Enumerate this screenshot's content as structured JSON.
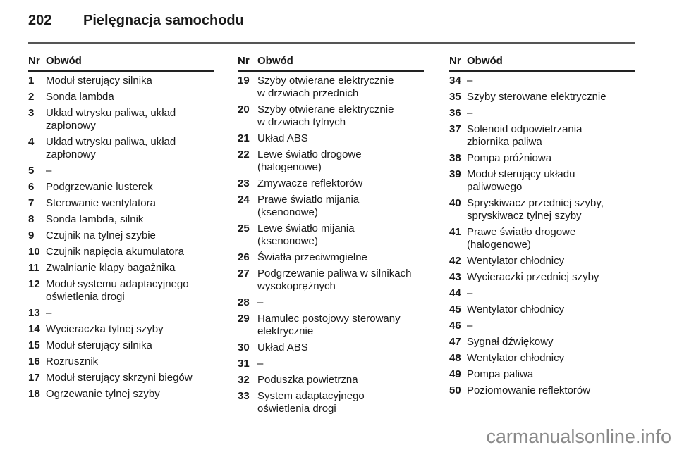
{
  "page": {
    "number": "202",
    "title": "Pielęgnacja samochodu"
  },
  "table_header": {
    "nr": "Nr",
    "circuit": "Obwód"
  },
  "columns": [
    [
      {
        "nr": "1",
        "text": "Moduł sterujący silnika"
      },
      {
        "nr": "2",
        "text": "Sonda lambda"
      },
      {
        "nr": "3",
        "text": "Układ wtrysku paliwa, układ\nzapłonowy"
      },
      {
        "nr": "4",
        "text": "Układ wtrysku paliwa, układ\nzapłonowy"
      },
      {
        "nr": "5",
        "text": "–"
      },
      {
        "nr": "6",
        "text": "Podgrzewanie lusterek"
      },
      {
        "nr": "7",
        "text": "Sterowanie wentylatora"
      },
      {
        "nr": "8",
        "text": "Sonda lambda, silnik"
      },
      {
        "nr": "9",
        "text": "Czujnik na tylnej szybie"
      },
      {
        "nr": "10",
        "text": "Czujnik napięcia akumulatora"
      },
      {
        "nr": "11",
        "text": "Zwalnianie klapy bagażnika"
      },
      {
        "nr": "12",
        "text": "Moduł systemu adaptacyjnego\noświetlenia drogi"
      },
      {
        "nr": "13",
        "text": "–"
      },
      {
        "nr": "14",
        "text": "Wycieraczka tylnej szyby"
      },
      {
        "nr": "15",
        "text": "Moduł sterujący silnika"
      },
      {
        "nr": "16",
        "text": "Rozrusznik"
      },
      {
        "nr": "17",
        "text": "Moduł sterujący skrzyni biegów"
      },
      {
        "nr": "18",
        "text": "Ogrzewanie tylnej szyby"
      }
    ],
    [
      {
        "nr": "19",
        "text": "Szyby otwierane elektrycznie\nw drzwiach przednich"
      },
      {
        "nr": "20",
        "text": "Szyby otwierane elektrycznie\nw drzwiach tylnych"
      },
      {
        "nr": "21",
        "text": "Układ ABS"
      },
      {
        "nr": "22",
        "text": "Lewe światło drogowe\n(halogenowe)"
      },
      {
        "nr": "23",
        "text": "Zmywacze reflektorów"
      },
      {
        "nr": "24",
        "text": "Prawe światło mijania\n(ksenonowe)"
      },
      {
        "nr": "25",
        "text": "Lewe światło mijania\n(ksenonowe)"
      },
      {
        "nr": "26",
        "text": "Światła przeciwmgielne"
      },
      {
        "nr": "27",
        "text": "Podgrzewanie paliwa w silnikach\nwysokoprężnych"
      },
      {
        "nr": "28",
        "text": "–"
      },
      {
        "nr": "29",
        "text": "Hamulec postojowy sterowany\nelektrycznie"
      },
      {
        "nr": "30",
        "text": "Układ ABS"
      },
      {
        "nr": "31",
        "text": "–"
      },
      {
        "nr": "32",
        "text": "Poduszka powietrzna"
      },
      {
        "nr": "33",
        "text": "System adaptacyjnego\noświetlenia drogi"
      }
    ],
    [
      {
        "nr": "34",
        "text": "–"
      },
      {
        "nr": "35",
        "text": "Szyby sterowane elektrycznie"
      },
      {
        "nr": "36",
        "text": "–"
      },
      {
        "nr": "37",
        "text": "Solenoid odpowietrzania\nzbiornika paliwa"
      },
      {
        "nr": "38",
        "text": "Pompa próżniowa"
      },
      {
        "nr": "39",
        "text": "Moduł sterujący układu\npaliwowego"
      },
      {
        "nr": "40",
        "text": "Spryskiwacz przedniej szyby,\nspryskiwacz tylnej szyby"
      },
      {
        "nr": "41",
        "text": "Prawe światło drogowe\n(halogenowe)"
      },
      {
        "nr": "42",
        "text": "Wentylator chłodnicy"
      },
      {
        "nr": "43",
        "text": "Wycieraczki przedniej szyby"
      },
      {
        "nr": "44",
        "text": "–"
      },
      {
        "nr": "45",
        "text": "Wentylator chłodnicy"
      },
      {
        "nr": "46",
        "text": "–"
      },
      {
        "nr": "47",
        "text": "Sygnał dźwiękowy"
      },
      {
        "nr": "48",
        "text": "Wentylator chłodnicy"
      },
      {
        "nr": "49",
        "text": "Pompa paliwa"
      },
      {
        "nr": "50",
        "text": "Poziomowanie reflektorów"
      }
    ]
  ],
  "watermark": "carmanualsonline.info"
}
